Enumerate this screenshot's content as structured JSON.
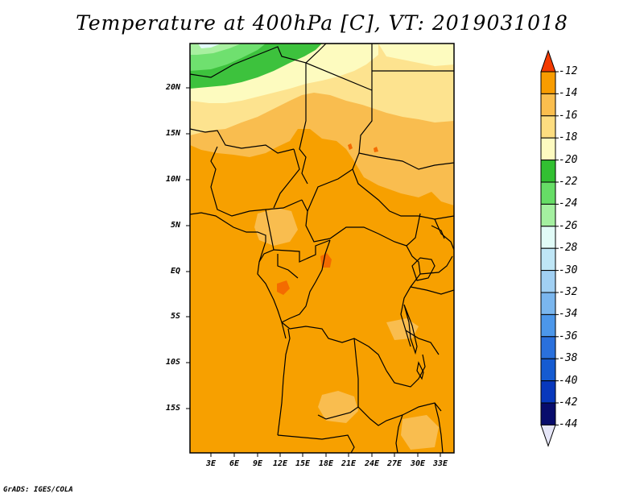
{
  "title": "Temperature at 400hPa [C], VT: 2019031018",
  "footer": "GrADS: IGES/COLA",
  "map": {
    "lat_labels": [
      "20N",
      "15N",
      "10N",
      "5N",
      "EQ",
      "5S",
      "10S",
      "15S"
    ],
    "lon_labels": [
      "3E",
      "6E",
      "9E",
      "12E",
      "15E",
      "18E",
      "21E",
      "24E",
      "27E",
      "30E",
      "33E"
    ],
    "colors": {
      "c_24_22": "#3dc23d",
      "c_22_20": "#fdfbbf",
      "c_20_18": "#fde38f",
      "c_18_16": "#f9bd4f",
      "c_16_14": "#f7a000",
      "c_14_12": "#f46b00",
      "c_26_24": "#6fe06f",
      "c_28_26": "#a8f0a0",
      "coast": "#000000"
    }
  },
  "colorbar": {
    "labels": [
      "-12",
      "-14",
      "-16",
      "-18",
      "-20",
      "-22",
      "-24",
      "-26",
      "-28",
      "-30",
      "-32",
      "-34",
      "-36",
      "-38",
      "-40",
      "-42",
      "-44"
    ],
    "colors": [
      "#f45f00",
      "#f89c00",
      "#fabe4e",
      "#fddd80",
      "#fdfac0",
      "#32c032",
      "#66dd66",
      "#a4f0a0",
      "#e1fbf7",
      "#bfe6f6",
      "#a1d0f3",
      "#7ab6ee",
      "#4c97ea",
      "#2a70dc",
      "#155bd1",
      "#0838bc",
      "#080c6c"
    ],
    "low_arrow_color": "#e6e6f8",
    "high_arrow_color": "#f33a00"
  }
}
